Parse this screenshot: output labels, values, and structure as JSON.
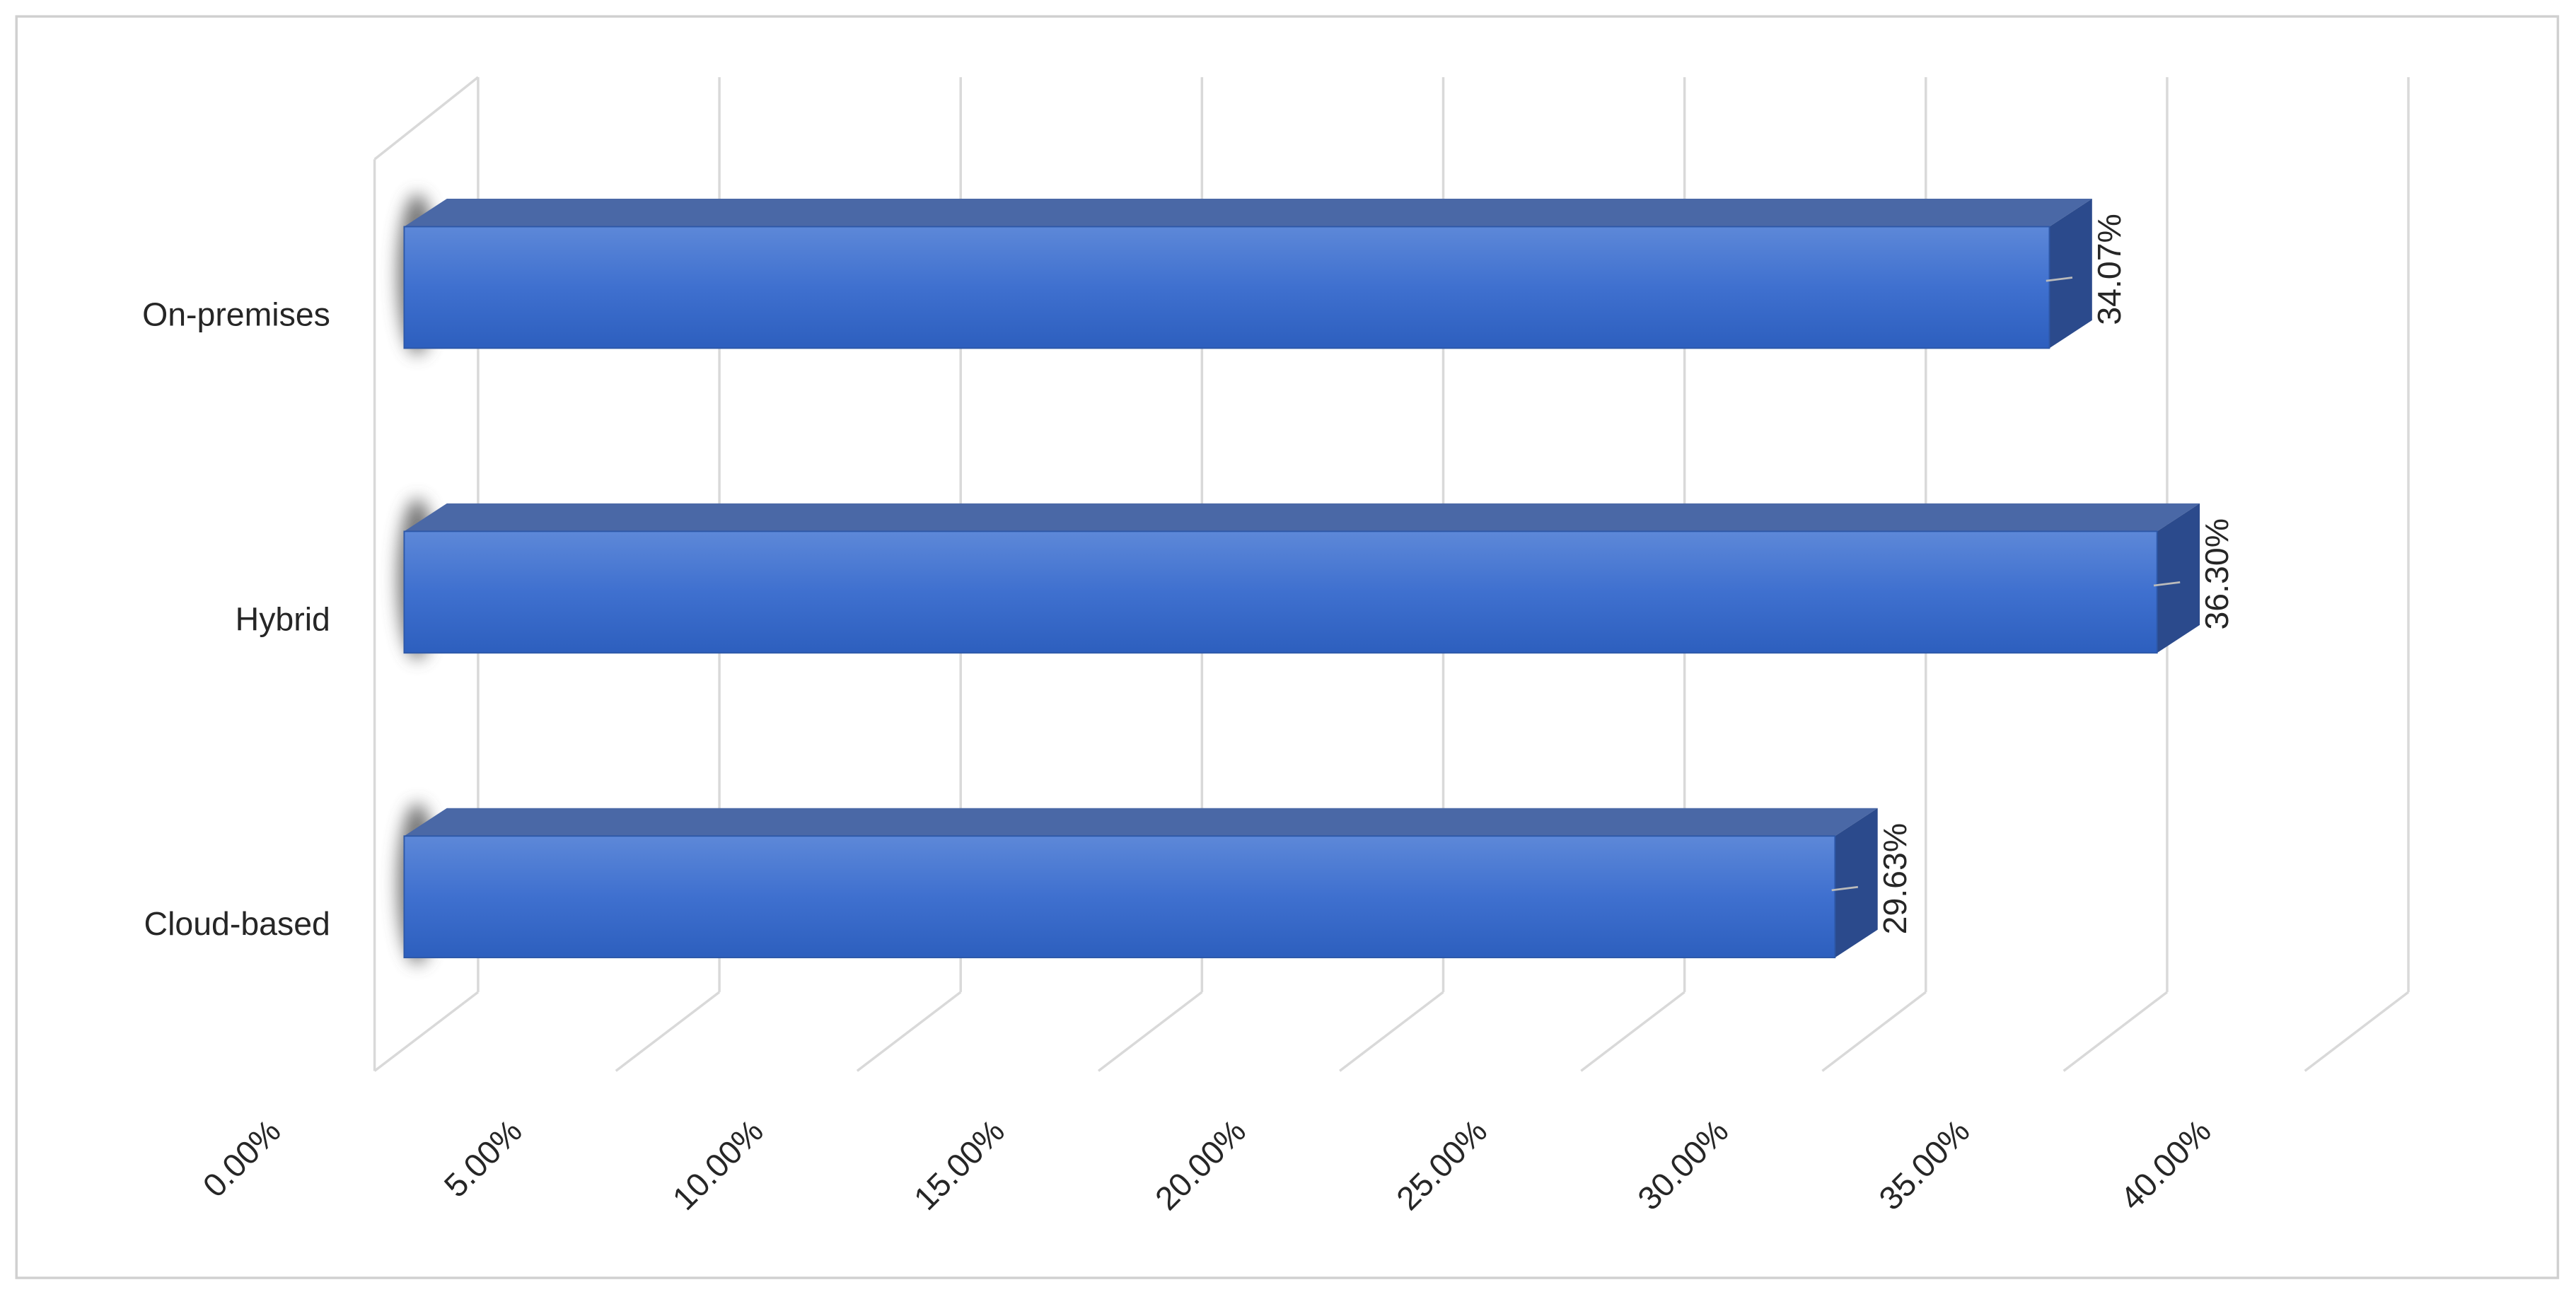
{
  "chart_data": {
    "type": "bar",
    "orientation": "horizontal",
    "categories": [
      "On-premises",
      "Hybrid",
      "Cloud-based"
    ],
    "values": [
      34.07,
      36.3,
      29.63
    ],
    "value_labels": [
      "34.07%",
      "36.30%",
      "29.63%"
    ],
    "color": "#3a6cc9",
    "xlim": [
      0,
      40
    ],
    "xticks": [
      {
        "value": 0,
        "label": "0.00%"
      },
      {
        "value": 5,
        "label": "5.00%"
      },
      {
        "value": 10,
        "label": "10.00%"
      },
      {
        "value": 15,
        "label": "15.00%"
      },
      {
        "value": 20,
        "label": "20.00%"
      },
      {
        "value": 25,
        "label": "25.00%"
      },
      {
        "value": 30,
        "label": "30.00%"
      },
      {
        "value": 35,
        "label": "35.00%"
      },
      {
        "value": 40,
        "label": "40.00%"
      }
    ],
    "grid": true
  }
}
